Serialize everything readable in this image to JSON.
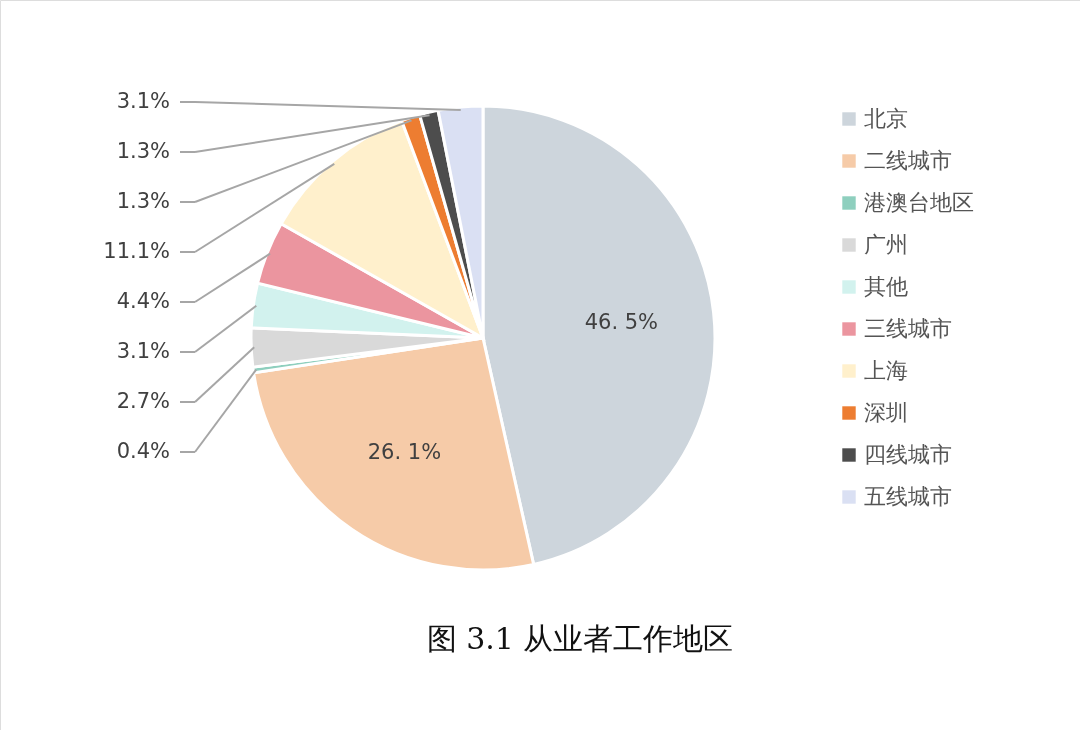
{
  "chart_data": {
    "type": "pie",
    "title": "图 3.1  从业者工作地区",
    "categories": [
      "北京",
      "二线城市",
      "港澳台地区",
      "广州",
      "其他",
      "三线城市",
      "上海",
      "深圳",
      "四线城市",
      "五线城市"
    ],
    "values": [
      46.5,
      26.1,
      0.4,
      2.7,
      3.1,
      4.4,
      11.1,
      1.3,
      1.3,
      3.1
    ],
    "colors": [
      "#cdd5dc",
      "#f6cba8",
      "#8ecfbe",
      "#d9d9d9",
      "#d2f2ee",
      "#eb959f",
      "#fff0cc",
      "#ed7d31",
      "#4d4d4d",
      "#dae0f3"
    ],
    "value_labels": [
      "46. 5%",
      "26. 1%",
      "0.4%",
      "2.7%",
      "3.1%",
      "4.4%",
      "11.1%",
      "1.3%",
      "1.3%",
      "3.1%"
    ],
    "legend": "right"
  }
}
